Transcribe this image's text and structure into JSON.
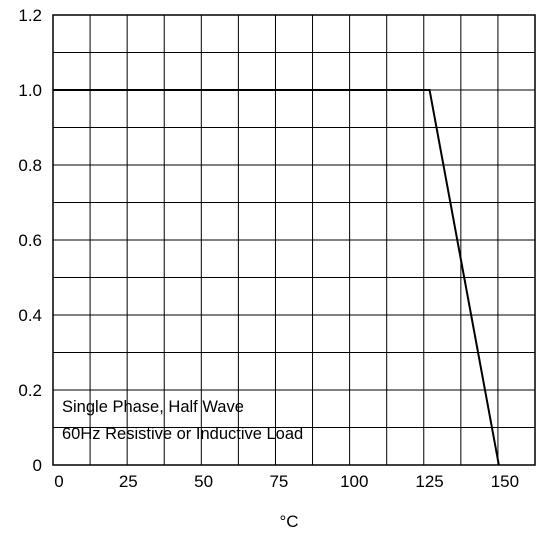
{
  "chart_data": {
    "type": "line",
    "title": "",
    "xlabel": "°C",
    "ylabel": "",
    "x_ticks": [
      "0",
      "25",
      "50",
      "75",
      "100",
      "125",
      "150"
    ],
    "y_ticks": [
      "0",
      "0.2",
      "0.4",
      "0.6",
      "0.8",
      "1.0",
      "1.2"
    ],
    "xlim": [
      0,
      160
    ],
    "ylim": [
      0,
      1.2
    ],
    "grid": true,
    "series": [
      {
        "x": [
          0,
          125,
          148
        ],
        "y": [
          1.0,
          1.0,
          0
        ]
      }
    ],
    "annotations": [
      "Single Phase, Half Wave",
      "60Hz Resistive or Inductive Load"
    ]
  }
}
